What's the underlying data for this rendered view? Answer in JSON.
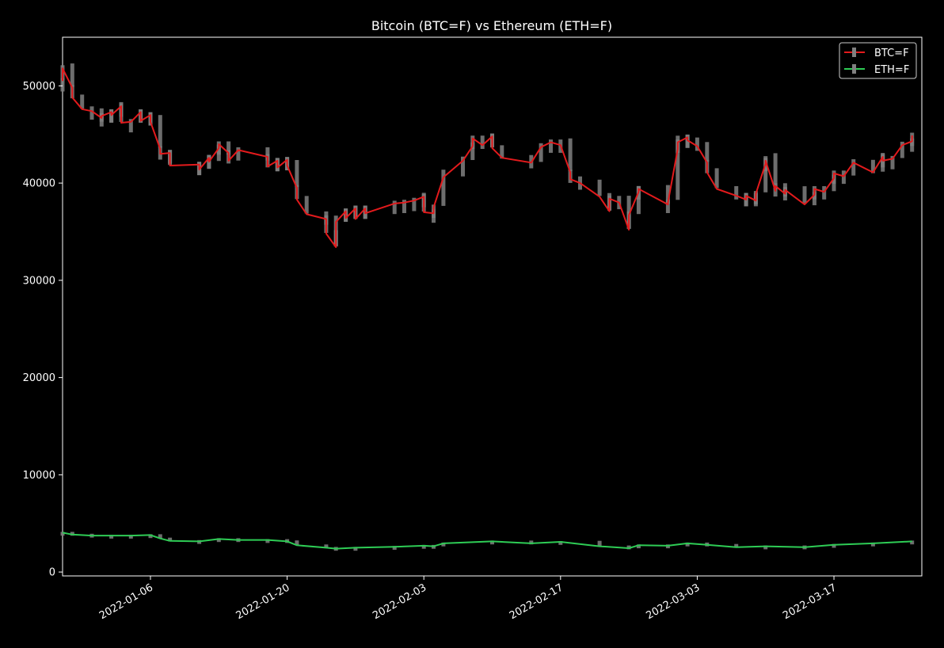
{
  "chart_data": {
    "type": "line",
    "title": "Bitcoin (BTC=F) vs Ethereum (ETH=F)",
    "xlabel": "",
    "ylabel": "",
    "x_range": [
      "2021-12-28",
      "2022-03-26"
    ],
    "ylim": [
      -400,
      55000
    ],
    "x_ticks": [
      "2022-01-06",
      "2022-01-20",
      "2022-02-03",
      "2022-02-17",
      "2022-03-03",
      "2022-03-17"
    ],
    "y_ticks": [
      0,
      10000,
      20000,
      30000,
      40000,
      50000
    ],
    "grid": false,
    "legend_position": "top-right",
    "background": "#000000",
    "series": [
      {
        "name": "BTC=F",
        "color": "#e31a1c",
        "wick_color": "#808080",
        "points": [
          [
            "2021-12-28",
            50500
          ],
          [
            "2021-12-28",
            51800
          ],
          [
            "2021-12-29",
            49800
          ],
          [
            "2021-12-29",
            48800
          ],
          [
            "2021-12-30",
            47600
          ],
          [
            "2021-12-31",
            47400
          ],
          [
            "2022-01-01",
            46700
          ],
          [
            "2022-01-01",
            46900
          ],
          [
            "2022-01-02",
            47300
          ],
          [
            "2022-01-02",
            47000
          ],
          [
            "2022-01-03",
            47900
          ],
          [
            "2022-01-03",
            46200
          ],
          [
            "2022-01-04",
            46300
          ],
          [
            "2022-01-05",
            47300
          ],
          [
            "2022-01-05",
            46400
          ],
          [
            "2022-01-06",
            47000
          ],
          [
            "2022-01-06",
            46300
          ],
          [
            "2022-01-07",
            43500
          ],
          [
            "2022-01-07",
            43000
          ],
          [
            "2022-01-08",
            43100
          ],
          [
            "2022-01-08",
            41800
          ],
          [
            "2022-01-11",
            41900
          ],
          [
            "2022-01-11",
            41400
          ],
          [
            "2022-01-12",
            42600
          ],
          [
            "2022-01-12",
            42200
          ],
          [
            "2022-01-13",
            43600
          ],
          [
            "2022-01-13",
            44000
          ],
          [
            "2022-01-14",
            43100
          ],
          [
            "2022-01-14",
            42300
          ],
          [
            "2022-01-15",
            43400
          ],
          [
            "2022-01-18",
            42700
          ],
          [
            "2022-01-18",
            41700
          ],
          [
            "2022-01-19",
            42300
          ],
          [
            "2022-01-19",
            41600
          ],
          [
            "2022-01-20",
            42400
          ],
          [
            "2022-01-20",
            41800
          ],
          [
            "2022-01-21",
            39500
          ],
          [
            "2022-01-21",
            38300
          ],
          [
            "2022-01-22",
            36800
          ],
          [
            "2022-01-24",
            36300
          ],
          [
            "2022-01-24",
            34800
          ],
          [
            "2022-01-25",
            33400
          ],
          [
            "2022-01-25",
            36000
          ],
          [
            "2022-01-26",
            37100
          ],
          [
            "2022-01-26",
            36400
          ],
          [
            "2022-01-27",
            37400
          ],
          [
            "2022-01-27",
            36300
          ],
          [
            "2022-01-28",
            37400
          ],
          [
            "2022-01-28",
            36900
          ],
          [
            "2022-01-31",
            37900
          ],
          [
            "2022-02-01",
            38000
          ],
          [
            "2022-02-02",
            38200
          ],
          [
            "2022-02-03",
            38600
          ],
          [
            "2022-02-03",
            37000
          ],
          [
            "2022-02-04",
            36900
          ],
          [
            "2022-02-04",
            37500
          ],
          [
            "2022-02-05",
            40600
          ],
          [
            "2022-02-07",
            42300
          ],
          [
            "2022-02-08",
            43800
          ],
          [
            "2022-02-08",
            44600
          ],
          [
            "2022-02-09",
            43900
          ],
          [
            "2022-02-10",
            44800
          ],
          [
            "2022-02-10",
            43600
          ],
          [
            "2022-02-11",
            42600
          ],
          [
            "2022-02-14",
            42100
          ],
          [
            "2022-02-15",
            43700
          ],
          [
            "2022-02-16",
            44200
          ],
          [
            "2022-02-17",
            43900
          ],
          [
            "2022-02-18",
            41100
          ],
          [
            "2022-02-18",
            40400
          ],
          [
            "2022-02-19",
            40000
          ],
          [
            "2022-02-21",
            38600
          ],
          [
            "2022-02-22",
            37100
          ],
          [
            "2022-02-22",
            38400
          ],
          [
            "2022-02-23",
            38000
          ],
          [
            "2022-02-24",
            35200
          ],
          [
            "2022-02-24",
            36700
          ],
          [
            "2022-02-25",
            39100
          ],
          [
            "2022-02-25",
            39400
          ],
          [
            "2022-02-28",
            37800
          ],
          [
            "2022-02-28",
            38000
          ],
          [
            "2022-03-01",
            43500
          ],
          [
            "2022-03-01",
            44200
          ],
          [
            "2022-03-02",
            44700
          ],
          [
            "2022-03-02",
            44400
          ],
          [
            "2022-03-03",
            43800
          ],
          [
            "2022-03-04",
            42100
          ],
          [
            "2022-03-04",
            41100
          ],
          [
            "2022-03-05",
            39400
          ],
          [
            "2022-03-07",
            38700
          ],
          [
            "2022-03-08",
            38300
          ],
          [
            "2022-03-08",
            38700
          ],
          [
            "2022-03-09",
            38200
          ],
          [
            "2022-03-09",
            38900
          ],
          [
            "2022-03-10",
            42000
          ],
          [
            "2022-03-10",
            42300
          ],
          [
            "2022-03-11",
            39200
          ],
          [
            "2022-03-11",
            39700
          ],
          [
            "2022-03-12",
            38900
          ],
          [
            "2022-03-12",
            39300
          ],
          [
            "2022-03-14",
            37800
          ],
          [
            "2022-03-15",
            38800
          ],
          [
            "2022-03-15",
            39400
          ],
          [
            "2022-03-16",
            39100
          ],
          [
            "2022-03-17",
            40500
          ],
          [
            "2022-03-17",
            41000
          ],
          [
            "2022-03-18",
            40700
          ],
          [
            "2022-03-19",
            42100
          ],
          [
            "2022-03-21",
            41100
          ],
          [
            "2022-03-22",
            42700
          ],
          [
            "2022-03-22",
            42300
          ],
          [
            "2022-03-23",
            42500
          ],
          [
            "2022-03-24",
            43900
          ],
          [
            "2022-03-25",
            44300
          ],
          [
            "2022-03-25",
            44900
          ]
        ]
      },
      {
        "name": "ETH=F",
        "color": "#2ecc55",
        "wick_color": "#808080",
        "points": [
          [
            "2021-12-28",
            4050
          ],
          [
            "2021-12-29",
            3850
          ],
          [
            "2021-12-31",
            3750
          ],
          [
            "2022-01-02",
            3750
          ],
          [
            "2022-01-04",
            3750
          ],
          [
            "2022-01-06",
            3800
          ],
          [
            "2022-01-07",
            3450
          ],
          [
            "2022-01-08",
            3200
          ],
          [
            "2022-01-11",
            3150
          ],
          [
            "2022-01-13",
            3400
          ],
          [
            "2022-01-15",
            3300
          ],
          [
            "2022-01-18",
            3300
          ],
          [
            "2022-01-20",
            3150
          ],
          [
            "2022-01-21",
            2750
          ],
          [
            "2022-01-24",
            2500
          ],
          [
            "2022-01-25",
            2400
          ],
          [
            "2022-01-27",
            2500
          ],
          [
            "2022-01-31",
            2600
          ],
          [
            "2022-02-03",
            2700
          ],
          [
            "2022-02-04",
            2650
          ],
          [
            "2022-02-05",
            2950
          ],
          [
            "2022-02-10",
            3150
          ],
          [
            "2022-02-14",
            2950
          ],
          [
            "2022-02-17",
            3100
          ],
          [
            "2022-02-21",
            2650
          ],
          [
            "2022-02-24",
            2450
          ],
          [
            "2022-02-25",
            2750
          ],
          [
            "2022-02-28",
            2700
          ],
          [
            "2022-03-02",
            2950
          ],
          [
            "2022-03-04",
            2800
          ],
          [
            "2022-03-07",
            2550
          ],
          [
            "2022-03-10",
            2650
          ],
          [
            "2022-03-14",
            2550
          ],
          [
            "2022-03-17",
            2800
          ],
          [
            "2022-03-21",
            2950
          ],
          [
            "2022-03-25",
            3150
          ]
        ]
      }
    ]
  }
}
